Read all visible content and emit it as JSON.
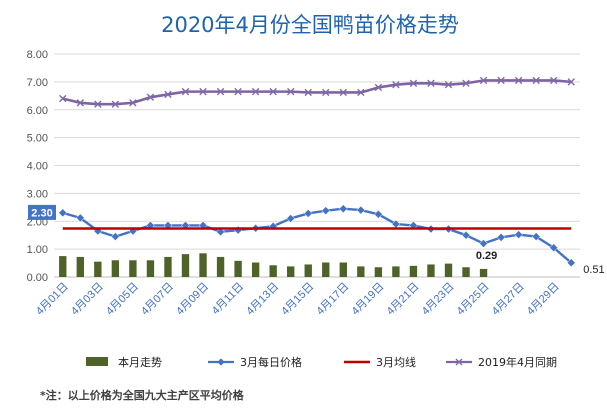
{
  "chart_data": {
    "type": "line",
    "title": "2020年4月份全国鸭苗价格走势",
    "ylim": [
      0,
      8
    ],
    "yticks": [
      "0.00",
      "1.00",
      "2.00",
      "3.00",
      "4.00",
      "5.00",
      "6.00",
      "7.00",
      "8.00"
    ],
    "grid": true,
    "legend_position": "bottom",
    "x": [
      "4月01日",
      "4月02日",
      "4月03日",
      "4月04日",
      "4月05日",
      "4月06日",
      "4月07日",
      "4月08日",
      "4月09日",
      "4月10日",
      "4月11日",
      "4月12日",
      "4月13日",
      "4月14日",
      "4月15日",
      "4月16日",
      "4月17日",
      "4月18日",
      "4月19日",
      "4月20日",
      "4月21日",
      "4月22日",
      "4月23日",
      "4月24日",
      "4月25日",
      "4月26日",
      "4月27日",
      "4月28日",
      "4月29日",
      "4月30日"
    ],
    "xtick_labels": [
      {
        "index": 0,
        "label": "4月01日"
      },
      {
        "index": 2,
        "label": "4月03日"
      },
      {
        "index": 4,
        "label": "4月05日"
      },
      {
        "index": 6,
        "label": "4月07日"
      },
      {
        "index": 8,
        "label": "4月09日"
      },
      {
        "index": 10,
        "label": "4月11日"
      },
      {
        "index": 12,
        "label": "4月13日"
      },
      {
        "index": 14,
        "label": "4月15日"
      },
      {
        "index": 16,
        "label": "4月17日"
      },
      {
        "index": 18,
        "label": "4月19日"
      },
      {
        "index": 20,
        "label": "4月21日"
      },
      {
        "index": 22,
        "label": "4月23日"
      },
      {
        "index": 24,
        "label": "4月25日"
      },
      {
        "index": 26,
        "label": "4月27日"
      },
      {
        "index": 28,
        "label": "4月29日"
      }
    ],
    "series": [
      {
        "name": "本月走势",
        "kind": "bar",
        "color": "#4f6228",
        "values": [
          0.75,
          0.72,
          0.55,
          0.6,
          0.6,
          0.6,
          0.72,
          0.82,
          0.85,
          0.72,
          0.58,
          0.52,
          0.42,
          0.38,
          0.45,
          0.52,
          0.52,
          0.38,
          0.35,
          0.38,
          0.4,
          0.45,
          0.48,
          0.35,
          0.29,
          null,
          null,
          null,
          null,
          null
        ]
      },
      {
        "name": "3月每日价格",
        "kind": "line-marker",
        "color": "#4472c4",
        "values": [
          2.3,
          2.12,
          1.65,
          1.45,
          1.65,
          1.85,
          1.85,
          1.85,
          1.85,
          1.62,
          1.68,
          1.75,
          1.82,
          2.1,
          2.28,
          2.38,
          2.45,
          2.4,
          2.25,
          1.9,
          1.85,
          1.72,
          1.72,
          1.5,
          1.2,
          1.42,
          1.52,
          1.45,
          1.05,
          0.51
        ]
      },
      {
        "name": "3月均线",
        "kind": "hline",
        "color": "#c00000",
        "values": [
          1.74,
          1.74,
          1.74,
          1.74,
          1.74,
          1.74,
          1.74,
          1.74,
          1.74,
          1.74,
          1.74,
          1.74,
          1.74,
          1.74,
          1.74,
          1.74,
          1.74,
          1.74,
          1.74,
          1.74,
          1.74,
          1.74,
          1.74,
          1.74,
          1.74,
          1.74,
          1.74,
          1.74,
          1.74,
          1.74
        ]
      },
      {
        "name": "2019年4月同期",
        "kind": "line-x",
        "color": "#8064a2",
        "values": [
          6.4,
          6.25,
          6.2,
          6.2,
          6.25,
          6.45,
          6.55,
          6.65,
          6.65,
          6.65,
          6.65,
          6.65,
          6.65,
          6.65,
          6.62,
          6.62,
          6.62,
          6.62,
          6.8,
          6.9,
          6.95,
          6.95,
          6.9,
          6.95,
          7.05,
          7.05,
          7.05,
          7.05,
          7.05,
          7.0
        ]
      }
    ],
    "data_labels": [
      {
        "series": 1,
        "index": 0,
        "text": "2.30",
        "boxed": true
      },
      {
        "series": 0,
        "index": 24,
        "text": "0.29",
        "boxed": false
      },
      {
        "series": 1,
        "index": 29,
        "text": "0.51",
        "boxed": false
      }
    ],
    "note": "*注：以上价格为全国九大主产区平均价格"
  }
}
